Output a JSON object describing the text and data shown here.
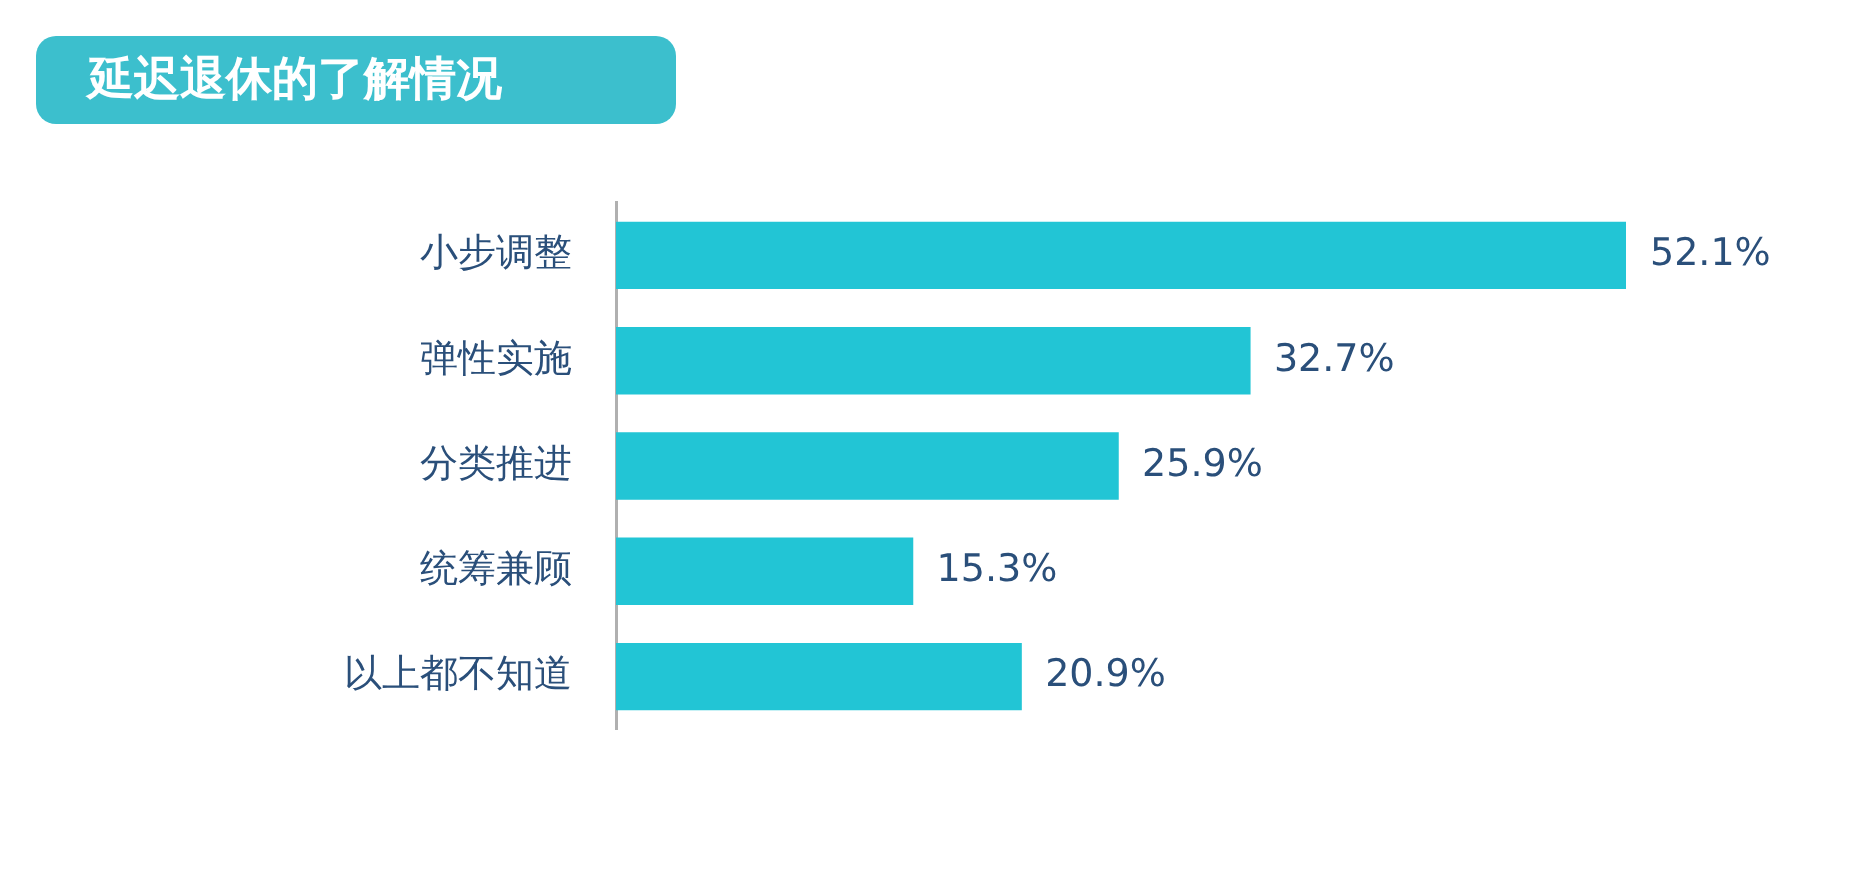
{
  "chart_data": {
    "type": "bar",
    "orientation": "horizontal",
    "title": "延迟退休的了解情况",
    "categories": [
      "小步调整",
      "弹性实施",
      "分类推进",
      "统筹兼顾",
      "以上都不知道"
    ],
    "values": [
      52.1,
      32.7,
      25.9,
      15.3,
      20.9
    ],
    "value_labels": [
      "52.1%",
      "32.7%",
      "25.9%",
      "15.3%",
      "20.9%"
    ],
    "color": "#22c5d5",
    "legend": false
  }
}
